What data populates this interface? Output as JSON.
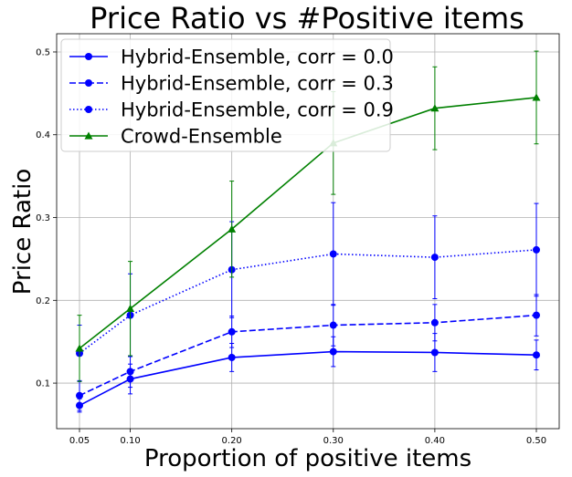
{
  "chart_data": {
    "type": "line",
    "title": "Price Ratio vs #Positive items",
    "xlabel": "Proportion of positive items",
    "ylabel": "Price Ratio",
    "x": [
      0.05,
      0.1,
      0.2,
      0.3,
      0.4,
      0.5
    ],
    "x_tick_labels": [
      "0.05",
      "0.10",
      "0.20",
      "0.30",
      "0.40",
      "0.50"
    ],
    "y_ticks": [
      0.1,
      0.2,
      0.3,
      0.4,
      0.5
    ],
    "y_tick_labels": [
      "0.1",
      "0.2",
      "0.3",
      "0.4",
      "0.5"
    ],
    "xlim": [
      0.0275,
      0.5225
    ],
    "ylim": [
      0.045,
      0.522
    ],
    "grid": true,
    "legend_position": "top-left",
    "series": [
      {
        "name": "Hybrid-Ensemble, corr = 0.0",
        "color": "#0000ff",
        "line_style": "solid",
        "marker": "circle",
        "values": [
          0.073,
          0.105,
          0.131,
          0.138,
          0.137,
          0.134
        ],
        "errors": [
          0.008,
          0.018,
          0.017,
          0.018,
          0.023,
          0.018
        ]
      },
      {
        "name": "Hybrid-Ensemble, corr = 0.3",
        "color": "#0000ff",
        "line_style": "dashed",
        "marker": "circle",
        "values": [
          0.085,
          0.114,
          0.162,
          0.17,
          0.173,
          0.182
        ],
        "errors": [
          0.018,
          0.019,
          0.019,
          0.025,
          0.022,
          0.025
        ]
      },
      {
        "name": "Hybrid-Ensemble, corr = 0.9",
        "color": "#0000ff",
        "line_style": "dotted",
        "marker": "circle",
        "values": [
          0.136,
          0.182,
          0.237,
          0.256,
          0.252,
          0.261
        ],
        "errors": [
          0.034,
          0.05,
          0.058,
          0.062,
          0.05,
          0.056
        ]
      },
      {
        "name": "Crowd-Ensemble",
        "color": "#008000",
        "line_style": "solid",
        "marker": "triangle",
        "values": [
          0.142,
          0.19,
          0.286,
          0.39,
          0.432,
          0.445
        ],
        "errors": [
          0.04,
          0.057,
          0.058,
          0.062,
          0.05,
          0.056
        ]
      }
    ]
  }
}
